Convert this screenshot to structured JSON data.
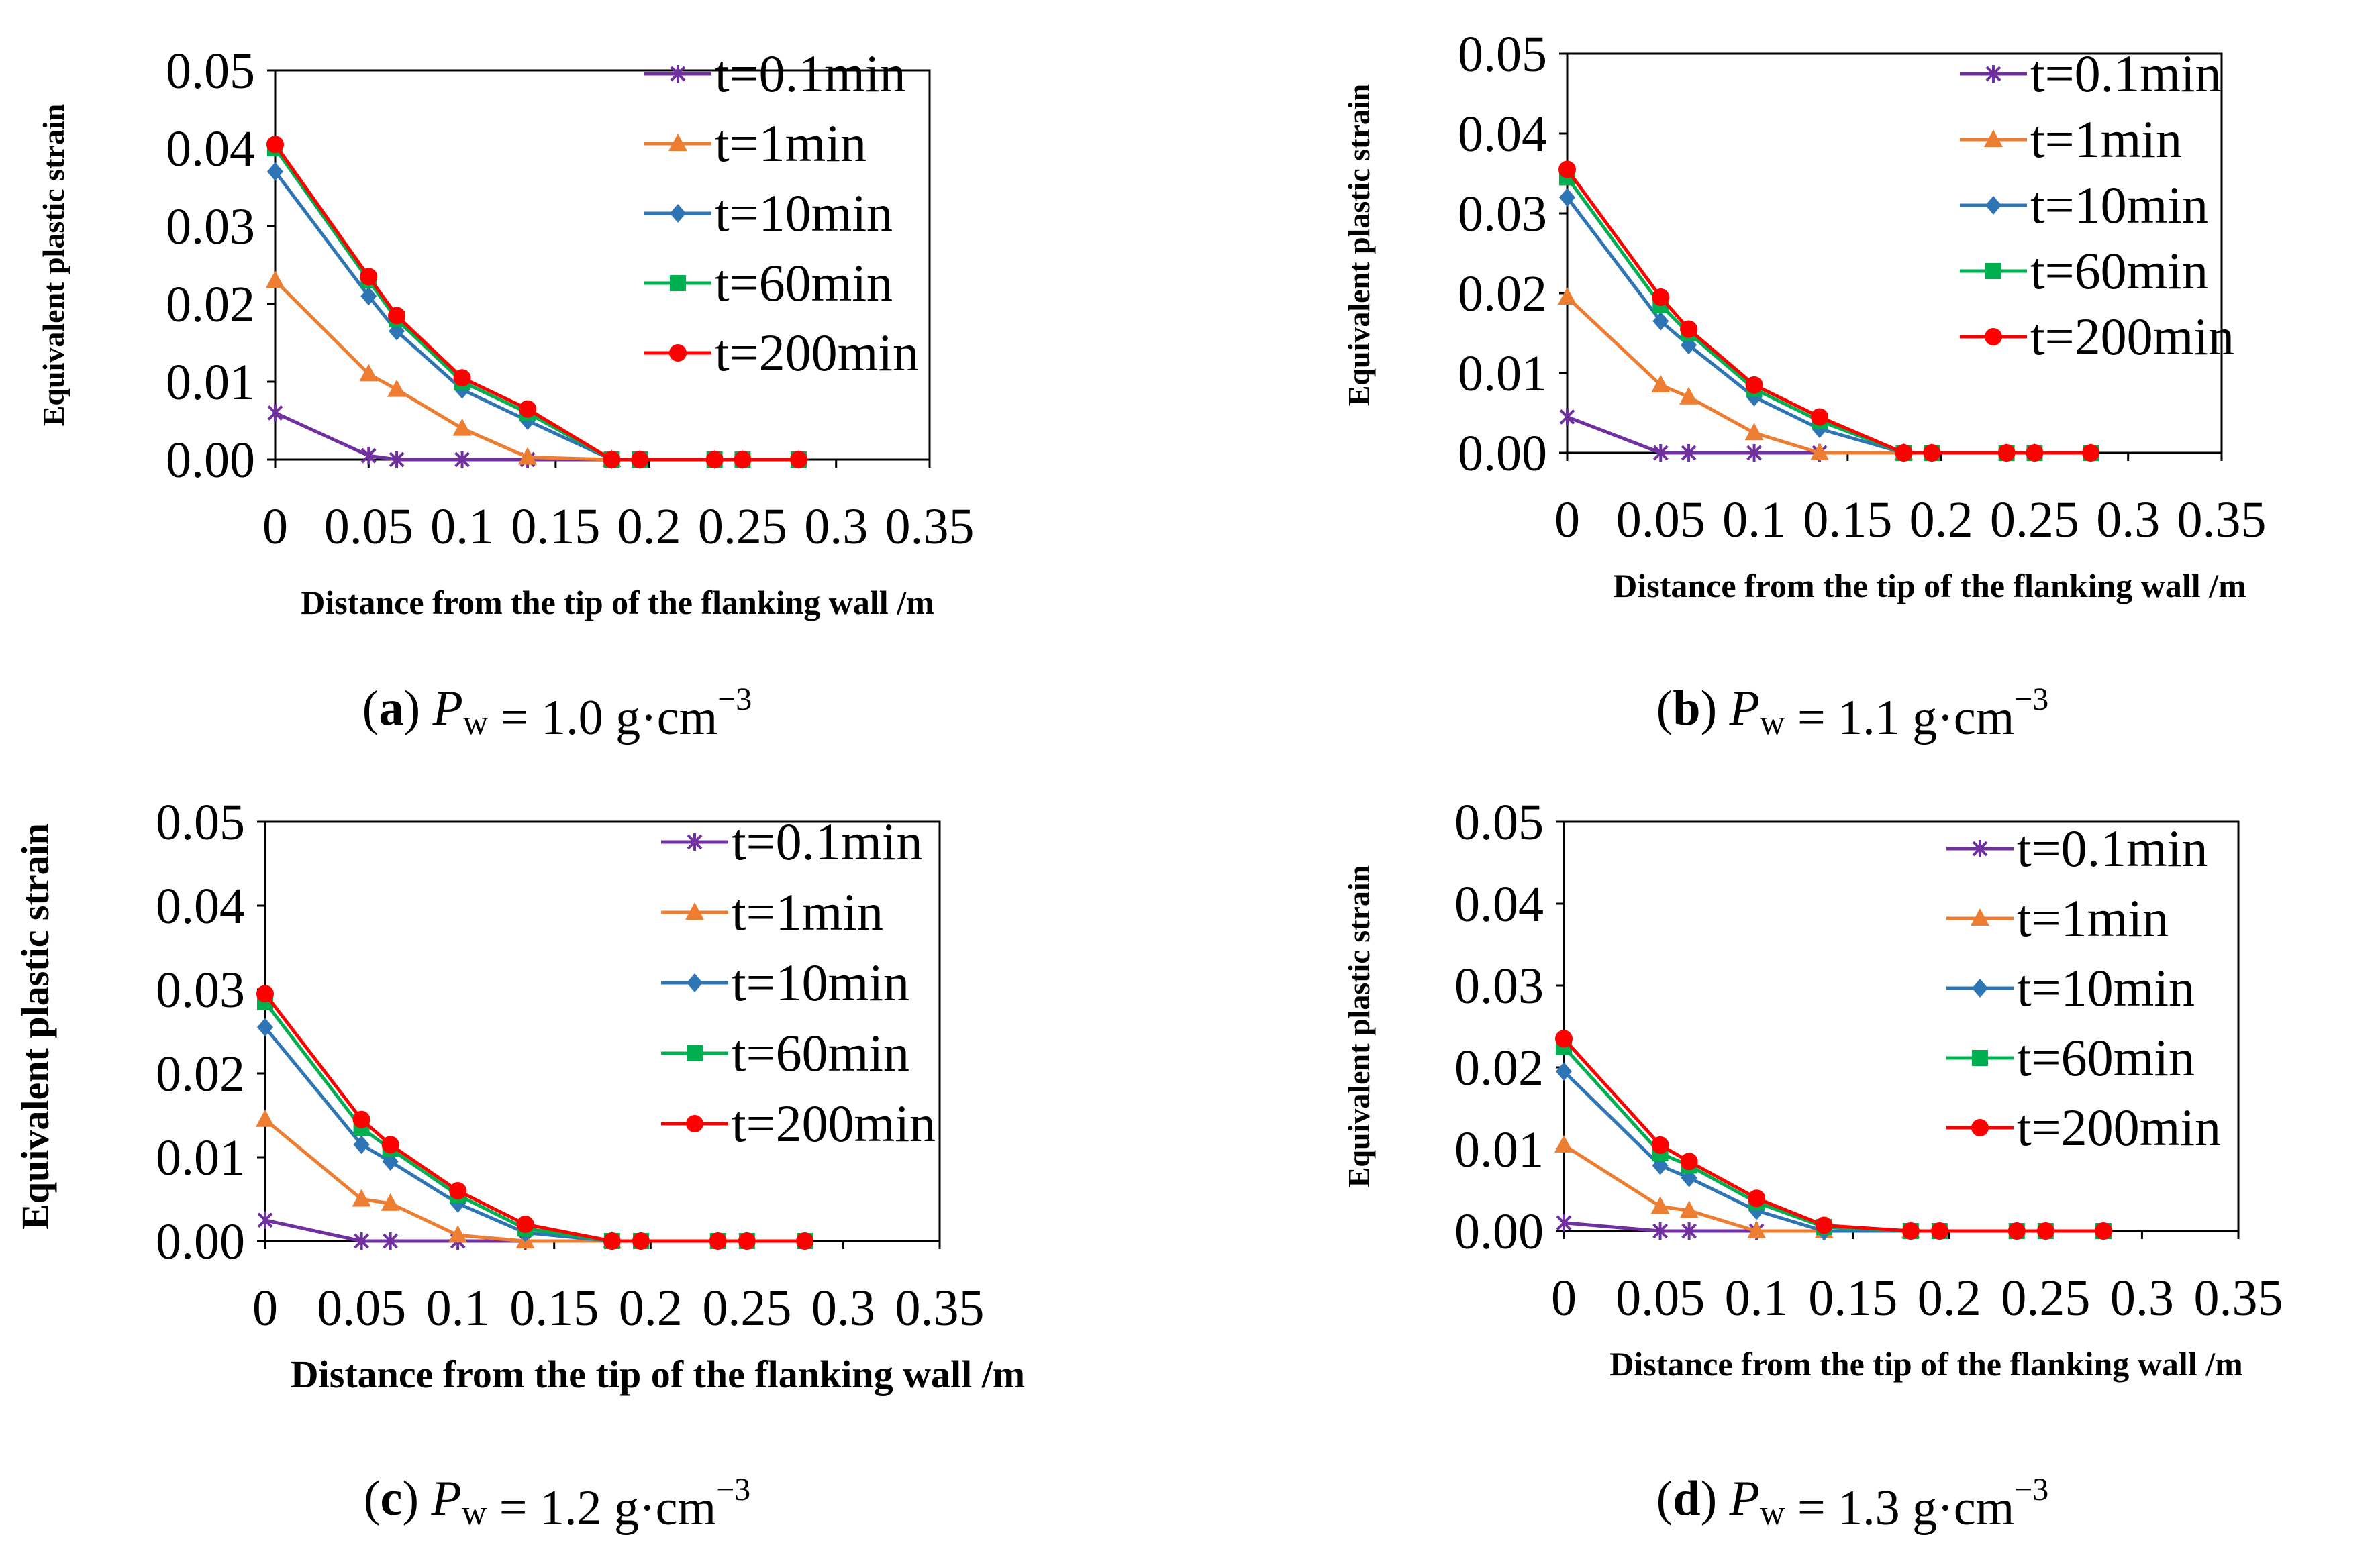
{
  "chart_data": [
    {
      "type": "line",
      "panel": "a",
      "caption": {
        "letter": "a",
        "symbol": "P",
        "subscript": "w",
        "value": "1.0",
        "unit_main": "g·cm",
        "unit_sup": "−3"
      },
      "xlabel": "Distance from the tip of the flanking wall  /m",
      "ylabel": "Equivalent plastic strain",
      "xlim": [
        0,
        0.35
      ],
      "ylim": [
        0,
        0.05
      ],
      "xticks": [
        "0",
        "0.05",
        "0.1",
        "0.15",
        "0.2",
        "0.25",
        "0.3",
        "0.35"
      ],
      "yticks": [
        "0.00",
        "0.01",
        "0.02",
        "0.03",
        "0.04",
        "0.05"
      ],
      "series": [
        {
          "name": "t=0.1min",
          "color": "#7030A0",
          "marker": "star",
          "x": [
            0,
            0.05,
            0.065,
            0.1,
            0.135,
            0.18
          ],
          "y": [
            0.006,
            0.0005,
            0,
            0,
            0,
            0
          ]
        },
        {
          "name": "t=1min",
          "color": "#ED7D31",
          "marker": "triangle",
          "x": [
            0,
            0.05,
            0.065,
            0.1,
            0.135,
            0.18
          ],
          "y": [
            0.023,
            0.011,
            0.009,
            0.004,
            0.0003,
            0
          ]
        },
        {
          "name": "t=10min",
          "color": "#2E75B6",
          "marker": "diamond",
          "x": [
            0,
            0.05,
            0.065,
            0.1,
            0.135,
            0.18,
            0.195,
            0.235,
            0.25,
            0.28
          ],
          "y": [
            0.037,
            0.021,
            0.0165,
            0.009,
            0.005,
            0,
            0,
            0,
            0,
            0
          ]
        },
        {
          "name": "t=60min",
          "color": "#00B050",
          "marker": "square",
          "x": [
            0,
            0.05,
            0.065,
            0.1,
            0.135,
            0.18,
            0.195,
            0.235,
            0.25,
            0.28
          ],
          "y": [
            0.04,
            0.023,
            0.018,
            0.01,
            0.006,
            0,
            0,
            0,
            0,
            0
          ]
        },
        {
          "name": "t=200min",
          "color": "#FF0000",
          "marker": "circle",
          "x": [
            0,
            0.05,
            0.065,
            0.1,
            0.135,
            0.18,
            0.195,
            0.235,
            0.25,
            0.28
          ],
          "y": [
            0.0405,
            0.0235,
            0.0185,
            0.0105,
            0.0065,
            0,
            0,
            0,
            0,
            0
          ]
        }
      ]
    },
    {
      "type": "line",
      "panel": "b",
      "caption": {
        "letter": "b",
        "symbol": "P",
        "subscript": "w",
        "value": "1.1",
        "unit_main": "g·cm",
        "unit_sup": "−3"
      },
      "xlabel": "Distance from the tip of the flanking wall  /m",
      "ylabel": "Equivalent plastic strain",
      "xlim": [
        0,
        0.35
      ],
      "ylim": [
        0,
        0.05
      ],
      "xticks": [
        "0",
        "0.05",
        "0.1",
        "0.15",
        "0.2",
        "0.25",
        "0.3",
        "0.35"
      ],
      "yticks": [
        "0.00",
        "0.01",
        "0.02",
        "0.03",
        "0.04",
        "0.05"
      ],
      "series": [
        {
          "name": "t=0.1min",
          "color": "#7030A0",
          "marker": "star",
          "x": [
            0,
            0.05,
            0.065,
            0.1,
            0.135,
            0.18
          ],
          "y": [
            0.0045,
            0,
            0,
            0,
            0,
            0
          ]
        },
        {
          "name": "t=1min",
          "color": "#ED7D31",
          "marker": "triangle",
          "x": [
            0,
            0.05,
            0.065,
            0.1,
            0.135,
            0.18
          ],
          "y": [
            0.0195,
            0.0085,
            0.007,
            0.0025,
            0,
            0
          ]
        },
        {
          "name": "t=10min",
          "color": "#2E75B6",
          "marker": "diamond",
          "x": [
            0,
            0.05,
            0.065,
            0.1,
            0.135,
            0.18,
            0.195,
            0.235,
            0.25,
            0.28
          ],
          "y": [
            0.032,
            0.0165,
            0.0135,
            0.007,
            0.003,
            0,
            0,
            0,
            0,
            0
          ]
        },
        {
          "name": "t=60min",
          "color": "#00B050",
          "marker": "square",
          "x": [
            0,
            0.05,
            0.065,
            0.1,
            0.135,
            0.18,
            0.195,
            0.235,
            0.25,
            0.28
          ],
          "y": [
            0.0345,
            0.0185,
            0.015,
            0.008,
            0.004,
            0,
            0,
            0,
            0,
            0
          ]
        },
        {
          "name": "t=200min",
          "color": "#FF0000",
          "marker": "circle",
          "x": [
            0,
            0.05,
            0.065,
            0.1,
            0.135,
            0.18,
            0.195,
            0.235,
            0.25,
            0.28
          ],
          "y": [
            0.0355,
            0.0195,
            0.0155,
            0.0085,
            0.0045,
            0,
            0,
            0,
            0,
            0
          ]
        }
      ]
    },
    {
      "type": "line",
      "panel": "c",
      "caption": {
        "letter": "c",
        "symbol": "P",
        "subscript": "w",
        "value": "1.2",
        "unit_main": "g·cm",
        "unit_sup": "−3"
      },
      "xlabel": "Distance from the tip of the flanking wall  /m",
      "ylabel": "Equivalent plastic strain",
      "xlim": [
        0,
        0.35
      ],
      "ylim": [
        0,
        0.05
      ],
      "xticks": [
        "0",
        "0.05",
        "0.1",
        "0.15",
        "0.2",
        "0.25",
        "0.3",
        "0.35"
      ],
      "yticks": [
        "0.00",
        "0.01",
        "0.02",
        "0.03",
        "0.04",
        "0.05"
      ],
      "series": [
        {
          "name": "t=0.1min",
          "color": "#7030A0",
          "marker": "star",
          "x": [
            0,
            0.05,
            0.065,
            0.1,
            0.135,
            0.18
          ],
          "y": [
            0.0025,
            0,
            0,
            0,
            0,
            0
          ]
        },
        {
          "name": "t=1min",
          "color": "#ED7D31",
          "marker": "triangle",
          "x": [
            0,
            0.05,
            0.065,
            0.1,
            0.135,
            0.18
          ],
          "y": [
            0.0145,
            0.005,
            0.0045,
            0.0007,
            0,
            0
          ]
        },
        {
          "name": "t=10min",
          "color": "#2E75B6",
          "marker": "diamond",
          "x": [
            0,
            0.05,
            0.065,
            0.1,
            0.135,
            0.18,
            0.195,
            0.235,
            0.25,
            0.28
          ],
          "y": [
            0.0255,
            0.0115,
            0.0095,
            0.0045,
            0.001,
            0,
            0,
            0,
            0,
            0
          ]
        },
        {
          "name": "t=60min",
          "color": "#00B050",
          "marker": "square",
          "x": [
            0,
            0.05,
            0.065,
            0.1,
            0.135,
            0.18,
            0.195,
            0.235,
            0.25,
            0.28
          ],
          "y": [
            0.0285,
            0.0135,
            0.011,
            0.0055,
            0.0015,
            0,
            0,
            0,
            0,
            0
          ]
        },
        {
          "name": "t=200min",
          "color": "#FF0000",
          "marker": "circle",
          "x": [
            0,
            0.05,
            0.065,
            0.1,
            0.135,
            0.18,
            0.195,
            0.235,
            0.25,
            0.28
          ],
          "y": [
            0.0295,
            0.0145,
            0.0115,
            0.006,
            0.002,
            0,
            0,
            0,
            0,
            0
          ]
        }
      ]
    },
    {
      "type": "line",
      "panel": "d",
      "caption": {
        "letter": "d",
        "symbol": "P",
        "subscript": "w",
        "value": "1.3",
        "unit_main": "g·cm",
        "unit_sup": "−3"
      },
      "xlabel": "Distance from the tip of the flanking wall  /m",
      "ylabel": "Equivalent plastic strain",
      "xlim": [
        0,
        0.35
      ],
      "ylim": [
        0,
        0.05
      ],
      "xticks": [
        "0",
        "0.05",
        "0.1",
        "0.15",
        "0.2",
        "0.25",
        "0.3",
        "0.35"
      ],
      "yticks": [
        "0.00",
        "0.01",
        "0.02",
        "0.03",
        "0.04",
        "0.05"
      ],
      "series": [
        {
          "name": "t=0.1min",
          "color": "#7030A0",
          "marker": "star",
          "x": [
            0,
            0.05,
            0.065,
            0.1,
            0.135,
            0.18
          ],
          "y": [
            0.001,
            0,
            0,
            0,
            0,
            0
          ]
        },
        {
          "name": "t=1min",
          "color": "#ED7D31",
          "marker": "triangle",
          "x": [
            0,
            0.05,
            0.065,
            0.1,
            0.135,
            0.18
          ],
          "y": [
            0.0105,
            0.003,
            0.0025,
            0,
            0,
            0
          ]
        },
        {
          "name": "t=10min",
          "color": "#2E75B6",
          "marker": "diamond",
          "x": [
            0,
            0.05,
            0.065,
            0.1,
            0.135,
            0.18,
            0.195,
            0.235,
            0.25,
            0.28
          ],
          "y": [
            0.0195,
            0.008,
            0.0065,
            0.0025,
            0,
            0,
            0,
            0,
            0,
            0
          ]
        },
        {
          "name": "t=60min",
          "color": "#00B050",
          "marker": "square",
          "x": [
            0,
            0.05,
            0.065,
            0.1,
            0.135,
            0.18,
            0.195,
            0.235,
            0.25,
            0.28
          ],
          "y": [
            0.0225,
            0.0095,
            0.008,
            0.0035,
            0.0005,
            0,
            0,
            0,
            0,
            0
          ]
        },
        {
          "name": "t=200min",
          "color": "#FF0000",
          "marker": "circle",
          "x": [
            0,
            0.05,
            0.065,
            0.1,
            0.135,
            0.18,
            0.195,
            0.235,
            0.25,
            0.28
          ],
          "y": [
            0.0235,
            0.0105,
            0.0085,
            0.004,
            0.0007,
            0,
            0,
            0,
            0,
            0
          ]
        }
      ]
    }
  ]
}
